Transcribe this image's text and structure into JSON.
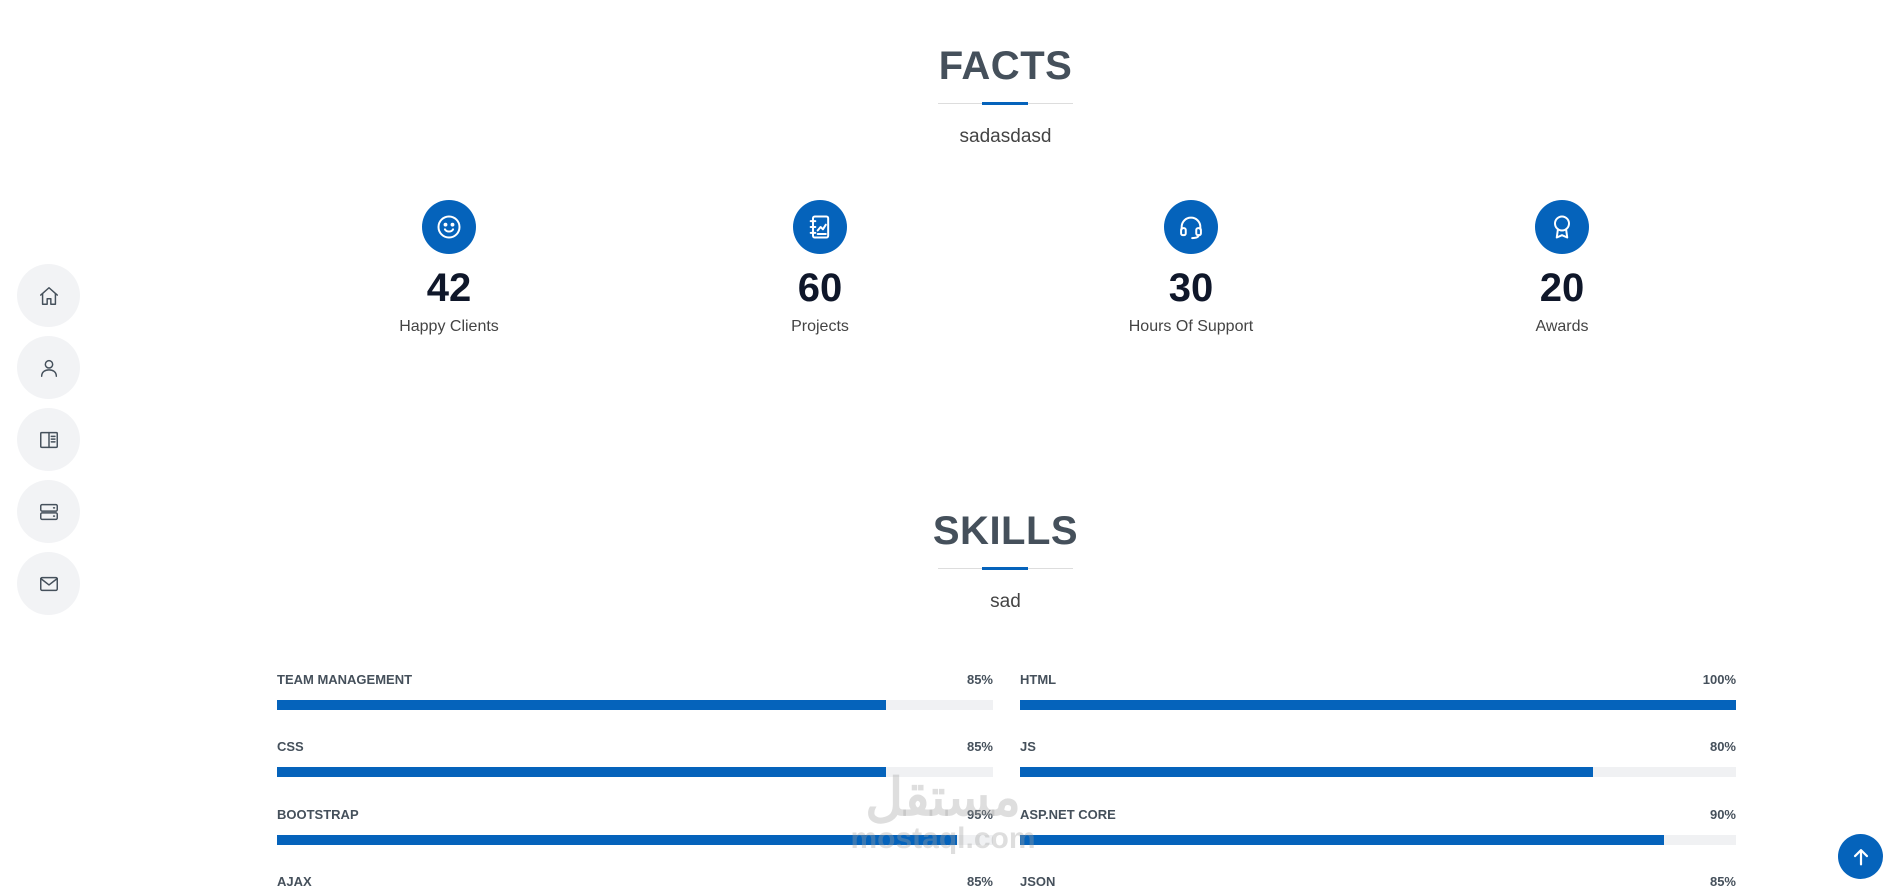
{
  "facts": {
    "title": "FACTS",
    "subtitle": "sadasdasd",
    "items": [
      {
        "number": "42",
        "label": "Happy Clients",
        "icon": "smile-icon"
      },
      {
        "number": "60",
        "label": "Projects",
        "icon": "journal-icon"
      },
      {
        "number": "30",
        "label": "Hours Of Support",
        "icon": "headset-icon"
      },
      {
        "number": "20",
        "label": "Awards",
        "icon": "award-icon"
      }
    ]
  },
  "skills": {
    "title": "SKILLS",
    "subtitle": "sad",
    "items": [
      {
        "name": "TEAM MANAGEMENT",
        "percent_label": "85%",
        "value": 85
      },
      {
        "name": "HTML",
        "percent_label": "100%",
        "value": 100
      },
      {
        "name": "CSS",
        "percent_label": "85%",
        "value": 85
      },
      {
        "name": "JS",
        "percent_label": "80%",
        "value": 80
      },
      {
        "name": "BOOTSTRAP",
        "percent_label": "95%",
        "value": 95
      },
      {
        "name": "ASP.NET CORE",
        "percent_label": "90%",
        "value": 90
      },
      {
        "name": "AJAX",
        "percent_label": "85%",
        "value": 85
      },
      {
        "name": "JSON",
        "percent_label": "85%",
        "value": 85
      }
    ]
  },
  "sidenav": {
    "items": [
      "home-icon",
      "person-icon",
      "resume-icon",
      "server-icon",
      "envelope-icon"
    ]
  },
  "watermark": {
    "arabic": "مستقل",
    "latin": "mostaql.com"
  },
  "colors": {
    "accent": "#0563bb",
    "heading": "#45505b",
    "nav_bg": "#f2f3f5",
    "track": "#f0f1f3"
  }
}
